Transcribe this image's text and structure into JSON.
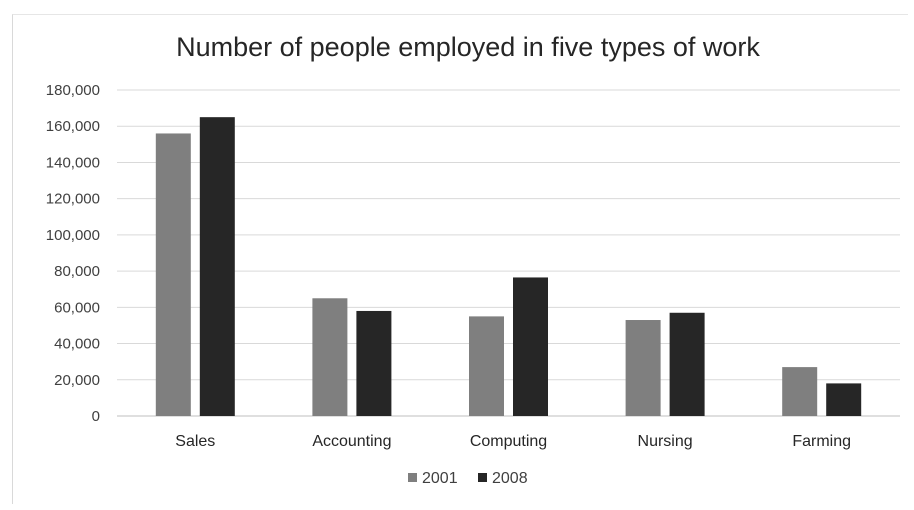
{
  "chart_data": {
    "type": "bar",
    "title": "Number of people employed in five types of work",
    "xlabel": "",
    "ylabel": "",
    "categories": [
      "Sales",
      "Accounting",
      "Computing",
      "Nursing",
      "Farming"
    ],
    "series": [
      {
        "name": "2001",
        "values": [
          156000,
          65000,
          55000,
          53000,
          27000
        ],
        "color": "#7f7f7f"
      },
      {
        "name": "2008",
        "values": [
          165000,
          58000,
          76500,
          57000,
          18000
        ],
        "color": "#262626"
      }
    ],
    "ylim": [
      0,
      180000
    ],
    "yticks": [
      "0",
      "20,000",
      "40,000",
      "60,000",
      "80,000",
      "100,000",
      "120,000",
      "140,000",
      "160,000",
      "180,000"
    ],
    "grid": true,
    "gridline_color": "#d9d9d9",
    "legend_position": "bottom"
  }
}
